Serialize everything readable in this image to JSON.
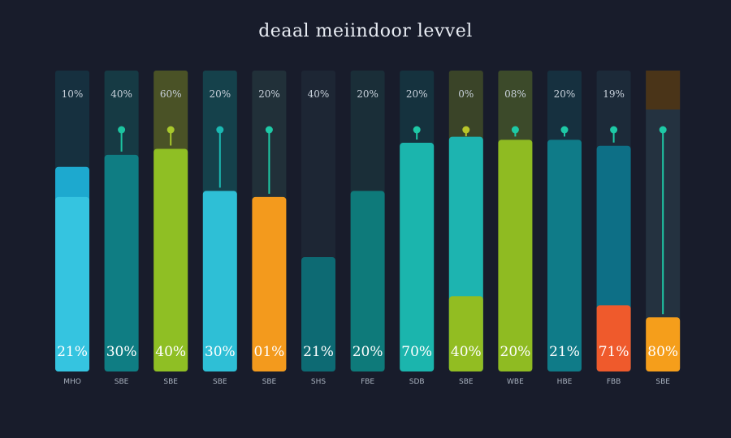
{
  "title": "deaal meiindoor levvel",
  "chart_data": {
    "type": "bar",
    "title": "deaal meiindoor levvel",
    "ylim": [
      0,
      100
    ],
    "grid": false,
    "legend": "none",
    "bars": [
      {
        "category": "MHO",
        "top_label": "10%",
        "bottom_label": "21%",
        "value": 68,
        "highlight": 58,
        "color": "#1da9cf",
        "fill2": "#35c4e0",
        "bg": "#16303f",
        "marker": null
      },
      {
        "category": "SBE",
        "top_label": "40%",
        "bottom_label": "30%",
        "value": 72,
        "highlight": null,
        "color": "#0f7d83",
        "fill2": null,
        "bg": "#163a44",
        "marker": "#1cc4a0"
      },
      {
        "category": "SBE",
        "top_label": "60%",
        "bottom_label": "40%",
        "value": 74,
        "highlight": null,
        "color": "#8fbf24",
        "fill2": null,
        "bg": "#4a5226",
        "marker": "#a8c82c"
      },
      {
        "category": "SBE",
        "top_label": "20%",
        "bottom_label": "30%",
        "value": 60,
        "highlight": null,
        "color": "#2ebfd6",
        "fill2": null,
        "bg": "#15414b",
        "marker": "#1bb8b2"
      },
      {
        "category": "SBE",
        "top_label": "20%",
        "bottom_label": "01%",
        "value": 58,
        "highlight": null,
        "color": "#f39a1d",
        "fill2": null,
        "bg": "#213039",
        "marker": "#1ec9a6"
      },
      {
        "category": "SHS",
        "top_label": "40%",
        "bottom_label": "21%",
        "value": 38,
        "highlight": null,
        "color": "#0d6a73",
        "fill2": null,
        "bg": "#1d2634",
        "marker": null
      },
      {
        "category": "FBE",
        "top_label": "20%",
        "bottom_label": "20%",
        "value": 60,
        "highlight": null,
        "color": "#0e7a7a",
        "fill2": null,
        "bg": "#1a2e38",
        "marker": null
      },
      {
        "category": "SDB",
        "top_label": "20%",
        "bottom_label": "70%",
        "value": 76,
        "highlight": null,
        "color": "#1bb5ad",
        "fill2": null,
        "bg": "#15323e",
        "marker": "#1ec9a6"
      },
      {
        "category": "SBE",
        "top_label": "0%",
        "bottom_label": "40%",
        "value": 78,
        "highlight": 25,
        "color": "#1db4b0",
        "fill2": "#92bd22",
        "bg": "#3a4428",
        "marker": "#b8c52a"
      },
      {
        "category": "WBE",
        "top_label": "08%",
        "bottom_label": "20%",
        "value": 77,
        "highlight": null,
        "color": "#8fbb22",
        "fill2": null,
        "bg": "#3c4a2a",
        "marker": "#1ec9a6"
      },
      {
        "category": "HBE",
        "top_label": "20%",
        "bottom_label": "21%",
        "value": 77,
        "highlight": null,
        "color": "#0f7b88",
        "fill2": null,
        "bg": "#16303f",
        "marker": "#1ec9a6"
      },
      {
        "category": "FBB",
        "top_label": "19%",
        "bottom_label": "71%",
        "value": 75,
        "highlight": 22,
        "color": "#0d6f86",
        "fill2": "#ef5a2c",
        "bg": "#1c2a39",
        "marker": "#1ec9a6"
      },
      {
        "category": "SBE",
        "top_label": "",
        "bottom_label": "80%",
        "value": 18,
        "highlight": null,
        "color": "#f59e1b",
        "fill2": null,
        "bg": "#243240",
        "marker": "#1ec9a6",
        "cap": "#4a3418"
      }
    ]
  }
}
